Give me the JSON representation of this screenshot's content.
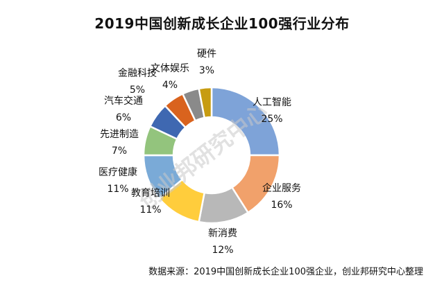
{
  "chart_data": {
    "type": "pie",
    "title": "2019中国创新成长企业100强行业分布",
    "categories": [
      "人工智能",
      "企业服务",
      "新消费",
      "教育培训",
      "医疗健康",
      "先进制造",
      "汽车交通",
      "金融科技",
      "文体娱乐",
      "硬件"
    ],
    "values": [
      25,
      16,
      12,
      11,
      11,
      7,
      6,
      5,
      4,
      3
    ],
    "value_labels": [
      "25%",
      "16%",
      "12%",
      "11%",
      "11%",
      "7%",
      "6%",
      "5%",
      "4%",
      "3%"
    ],
    "colors": [
      "#7ea3d8",
      "#f1a16b",
      "#b8b8b8",
      "#ffcd3c",
      "#7aaad7",
      "#93c47d",
      "#3f68b1",
      "#d9631e",
      "#8a8a8a",
      "#c79c11"
    ],
    "donut": true,
    "legend": "none"
  },
  "watermark": "创业邦研究中心",
  "source": "数据来源：2019中国创新成长企业100强企业，创业邦研究中心整理"
}
